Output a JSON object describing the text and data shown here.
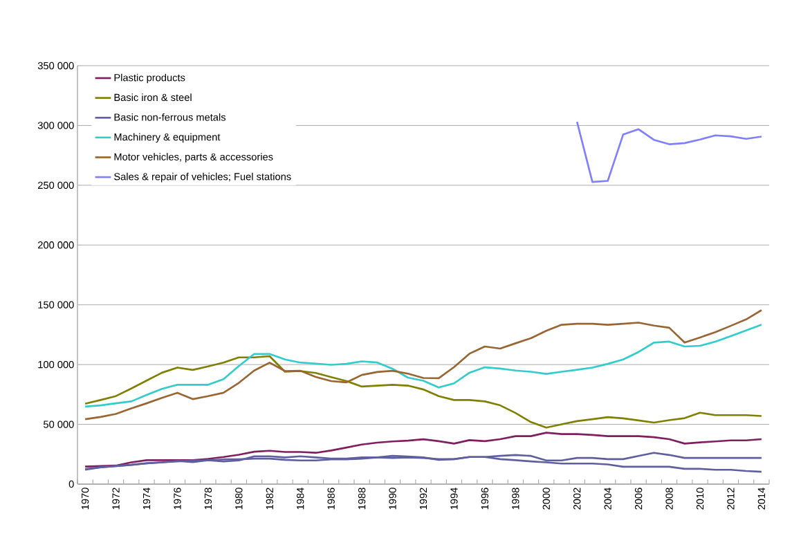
{
  "chart_data": {
    "type": "line",
    "line_style": "solid",
    "marker": "none",
    "grid": "y",
    "legend": "top left",
    "categories": [
      "1970",
      null,
      "1972",
      null,
      "1974",
      null,
      "1976",
      null,
      "1978",
      null,
      "1980",
      null,
      "1982",
      null,
      "1984",
      null,
      "1986",
      null,
      "1988",
      null,
      "1990",
      null,
      "1992",
      null,
      "1994",
      null,
      "1996",
      null,
      "1998",
      null,
      "2000",
      null,
      "2002",
      null,
      "2004",
      null,
      "2006",
      null,
      "2008",
      null,
      "2010",
      null,
      "2012",
      null,
      "2014"
    ],
    "ylim": [
      0,
      350000
    ],
    "yticks": [
      0,
      {
        "value": 50000,
        "label": "50 000"
      },
      {
        "value": 100000,
        "label": "100 000"
      },
      {
        "value": 150000,
        "label": "150 000"
      },
      {
        "value": 200000,
        "label": "200 000"
      },
      {
        "value": 250000,
        "label": "250 000"
      },
      {
        "value": 300000,
        "label": "300 000"
      },
      {
        "value": 350000,
        "label": "350 000"
      }
    ],
    "series": [
      {
        "name": "Plastic products",
        "color": "#7f1f5f",
        "values": [
          14700,
          15100,
          15500,
          18200,
          20000,
          20000,
          20000,
          20000,
          21100,
          22700,
          24600,
          27100,
          27900,
          26900,
          26900,
          26200,
          28100,
          30600,
          33100,
          34700,
          35700,
          36400,
          37500,
          35900,
          33900,
          36800,
          35900,
          37600,
          40100,
          40100,
          43000,
          41900,
          41900,
          41100,
          40100,
          40100,
          40100,
          39300,
          37600,
          33900,
          34900,
          35700,
          36600,
          36600,
          37600
        ]
      },
      {
        "name": "Basic iron & steel",
        "color": "#808000",
        "values": [
          67250,
          70350,
          73650,
          80000,
          86600,
          93200,
          97500,
          95500,
          98500,
          101700,
          106000,
          106000,
          107000,
          94000,
          94600,
          93000,
          89500,
          86200,
          81600,
          82400,
          83100,
          82400,
          79200,
          73600,
          70350,
          70350,
          69200,
          65900,
          59500,
          51900,
          47300,
          50000,
          52700,
          54300,
          56000,
          55000,
          53300,
          51500,
          53500,
          55200,
          59700,
          57700,
          57700,
          57700,
          57000
        ]
      },
      {
        "name": "Basic non-ferrous metals",
        "color": "#5f5f9f",
        "values": [
          12000,
          14100,
          15100,
          16100,
          17400,
          18200,
          19000,
          19800,
          19800,
          20700,
          20700,
          21300,
          21300,
          20300,
          19800,
          19800,
          20700,
          20700,
          21300,
          22300,
          23600,
          23100,
          22300,
          20300,
          20900,
          22700,
          22700,
          23600,
          24400,
          23600,
          19800,
          19800,
          21900,
          21900,
          20900,
          20900,
          23600,
          26200,
          24400,
          21900,
          21900,
          21900,
          21900,
          21900,
          21900
        ]
      },
      {
        "name": "Machinery & equipment",
        "color": "#33cccc",
        "values": [
          64900,
          65900,
          67600,
          69200,
          74600,
          79700,
          83100,
          83100,
          83100,
          87800,
          98800,
          108900,
          108900,
          104300,
          101700,
          100800,
          99800,
          100600,
          102700,
          101700,
          96500,
          89100,
          86500,
          80800,
          84300,
          93200,
          97700,
          96700,
          95000,
          94000,
          92200,
          94000,
          95700,
          97500,
          100600,
          104300,
          110500,
          118400,
          119200,
          115100,
          115700,
          119200,
          123800,
          128500,
          133300
        ]
      },
      {
        "name": "Motor vehicles, parts & accessories",
        "color": "#996633",
        "values": [
          54300,
          56200,
          58700,
          63400,
          67600,
          72100,
          76400,
          71100,
          73600,
          76400,
          84700,
          95000,
          101600,
          94600,
          94800,
          89700,
          86200,
          85100,
          91300,
          93800,
          94800,
          92400,
          88800,
          88600,
          97900,
          109100,
          115100,
          113400,
          117800,
          122100,
          128300,
          133300,
          134100,
          134100,
          133300,
          134100,
          135100,
          132600,
          130800,
          118400,
          122700,
          127100,
          132400,
          137800,
          145500
        ]
      },
      {
        "name": "Sales & repair of vehicles; Fuel stations",
        "color": "#7f7fff",
        "values": [
          null,
          null,
          null,
          null,
          null,
          null,
          null,
          null,
          null,
          null,
          null,
          null,
          null,
          null,
          null,
          null,
          null,
          null,
          null,
          null,
          null,
          null,
          null,
          null,
          null,
          null,
          null,
          null,
          null,
          null,
          null,
          null,
          303100,
          252700,
          253700,
          292400,
          296900,
          288000,
          284300,
          285300,
          288200,
          291700,
          290900,
          288800,
          290700
        ]
      },
      {
        "color": "#5f5f9f",
        "values": [
          12600,
          14100,
          15100,
          16100,
          17400,
          18200,
          19400,
          18400,
          20000,
          19000,
          19800,
          23300,
          23300,
          22300,
          23300,
          22300,
          21300,
          21300,
          22300,
          22300,
          21900,
          22300,
          21900,
          20900,
          20900,
          22700,
          22700,
          20900,
          20000,
          19000,
          18200,
          17200,
          17200,
          17200,
          16500,
          14500,
          14500,
          14500,
          14500,
          12800,
          12800,
          12000,
          12000,
          11000,
          10300
        ]
      }
    ]
  }
}
